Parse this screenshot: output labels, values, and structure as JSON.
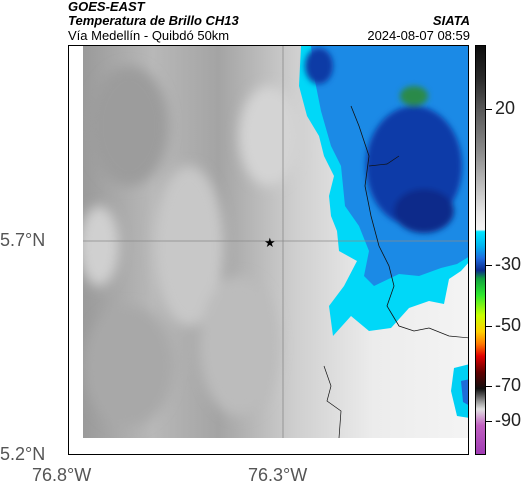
{
  "header": {
    "satellite": "GOES-EAST",
    "product": "Temperatura de Brillo CH13",
    "organization": "SIATA",
    "route": "Vía Medellín - Quibdó 50km",
    "datetime": "2024-08-07 08:59"
  },
  "axes": {
    "lat_ticks": [
      "5.7°N",
      "5.2°N"
    ],
    "lon_ticks": [
      "76.8°W",
      "76.3°W"
    ]
  },
  "colorbar": {
    "labels": [
      "20",
      "-30",
      "-50",
      "-70",
      "-90"
    ]
  },
  "map": {
    "marker_icon": "star-icon"
  },
  "colors": {
    "cloud_cold": "#0b2a8c",
    "cloud_mid": "#1e6ce0",
    "cloud_edge": "#00d8f8",
    "ground_warm": "#a8a8a8"
  }
}
